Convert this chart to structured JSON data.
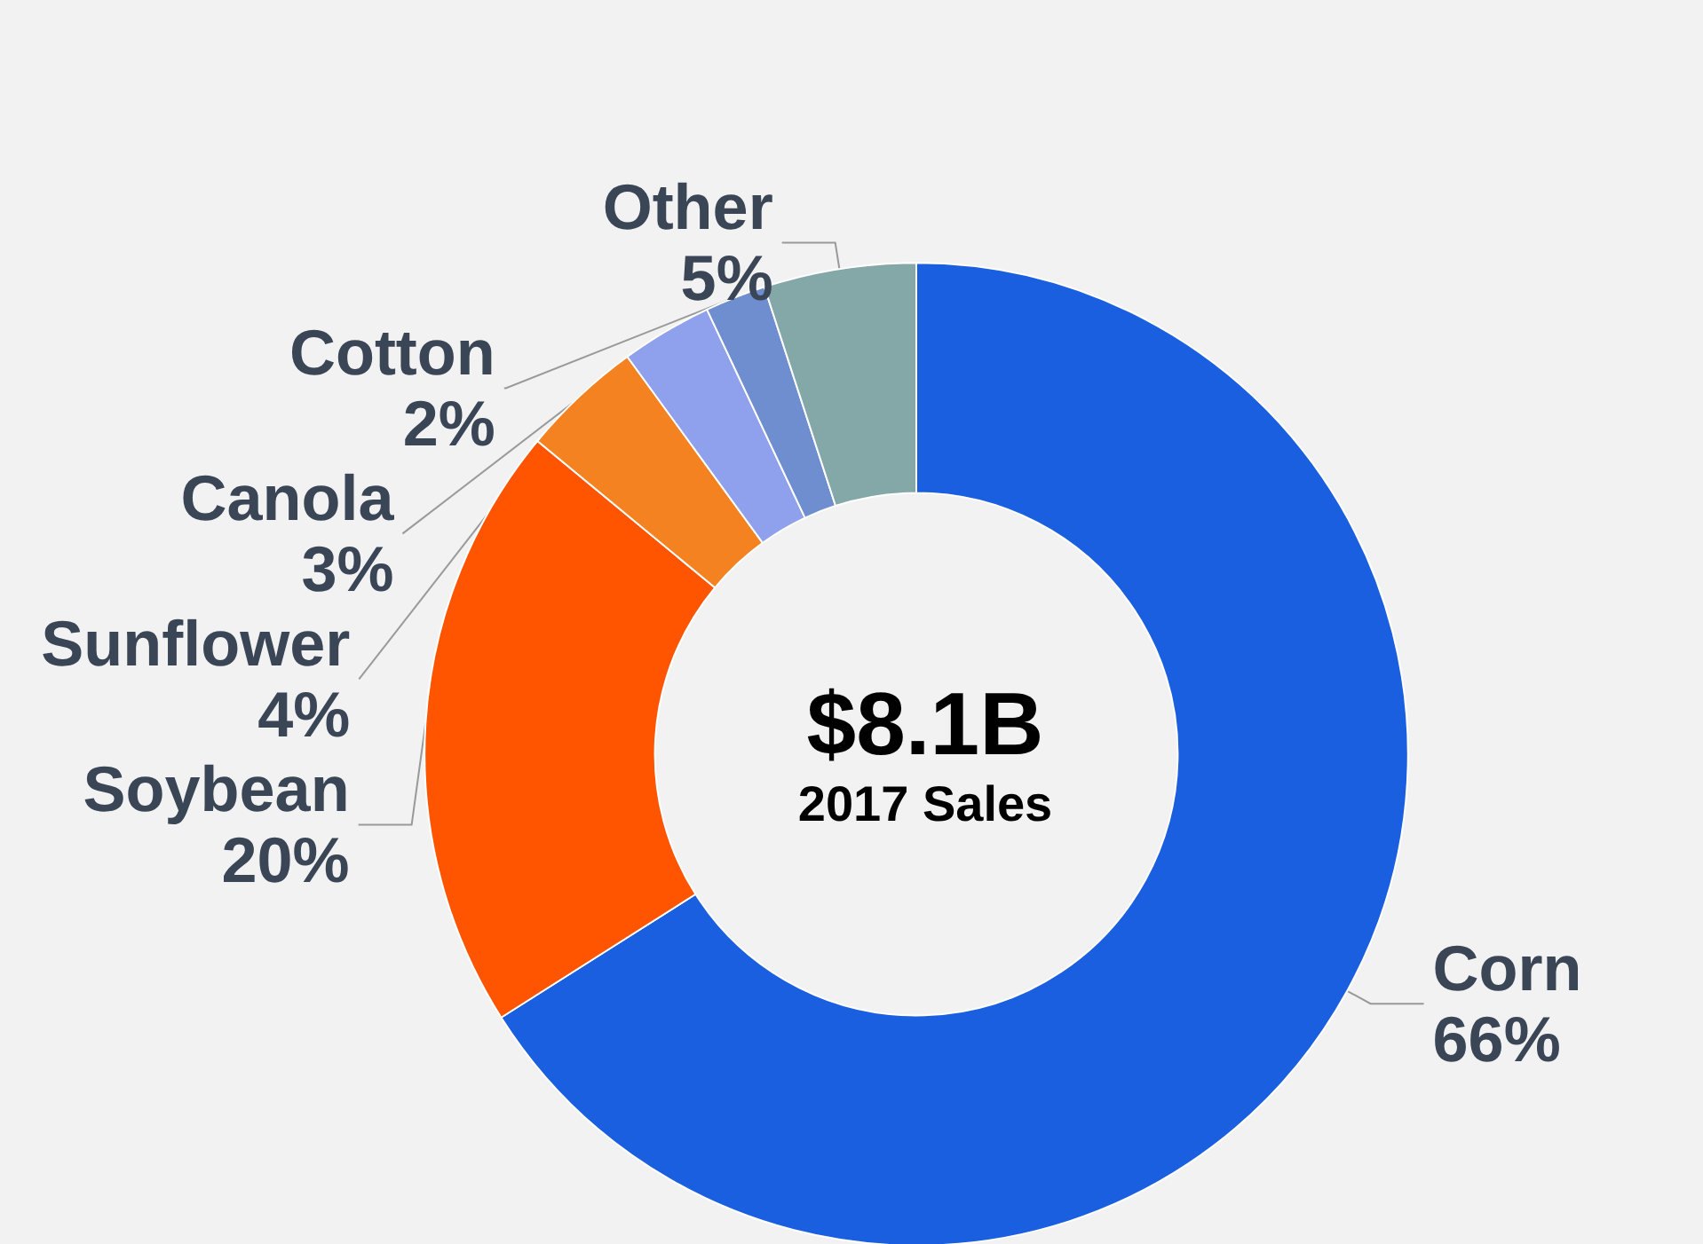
{
  "chart_data": {
    "type": "donut",
    "title": "$8.1B",
    "subtitle": "2017 Sales",
    "categories": [
      "Corn",
      "Soybean",
      "Sunflower",
      "Canola",
      "Cotton",
      "Other"
    ],
    "values": [
      66,
      20,
      4,
      3,
      2,
      5
    ],
    "value_labels": [
      "66%",
      "20%",
      "4%",
      "3%",
      "2%",
      "5%"
    ],
    "colors": [
      "#1a5fe0",
      "#ff5500",
      "#f58220",
      "#8fa0ec",
      "#6e8ed0",
      "#84a8a8"
    ],
    "legend": false
  }
}
